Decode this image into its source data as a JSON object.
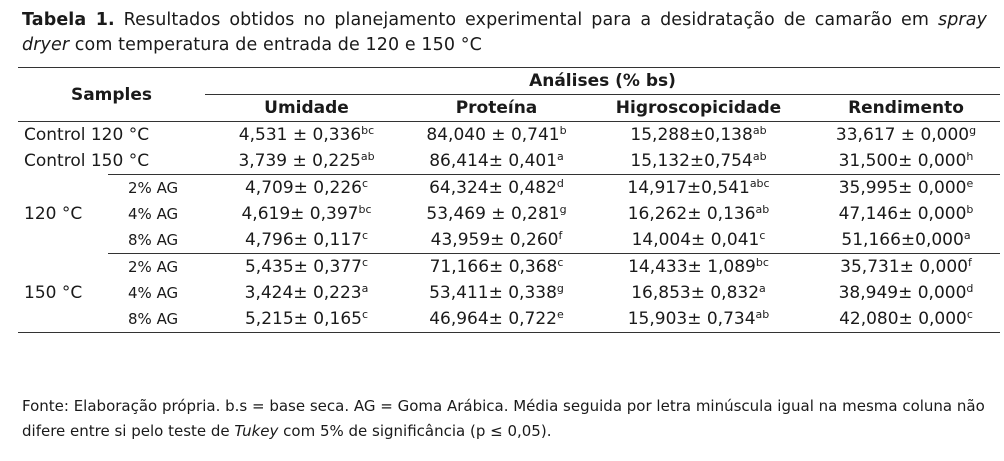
{
  "caption": {
    "label": "Tabela 1.",
    "text_before_italic": " Resultados obtidos no planejamento experimental para a desidratação de camarão em ",
    "italic": "spray dryer",
    "text_after_italic": " com temperatura de entrada de 120 e 150 °C"
  },
  "header": {
    "samples": "Samples",
    "group": "Análises (% bs)",
    "columns": [
      "Umidade",
      "Proteína",
      "Higroscopicidade",
      "Rendimento"
    ]
  },
  "rows": [
    {
      "group": "Control 120 °C",
      "sub": "",
      "cells": [
        [
          "4,531 ± 0,336",
          "bc"
        ],
        [
          "84,040 ± 0,741",
          "b"
        ],
        [
          "15,288±0,138",
          "ab"
        ],
        [
          "33,617 ± 0,000",
          "g"
        ]
      ]
    },
    {
      "group": "Control 150 °C",
      "sub": "",
      "cells": [
        [
          "3,739 ± 0,225",
          "ab"
        ],
        [
          "86,414± 0,401",
          "a"
        ],
        [
          "15,132±0,754",
          "ab"
        ],
        [
          "31,500± 0,000",
          "h"
        ]
      ]
    },
    {
      "group": "120 °C",
      "sub": "2% AG",
      "cells": [
        [
          "4,709± 0,226",
          "c"
        ],
        [
          "64,324± 0,482",
          "d"
        ],
        [
          "14,917±0,541",
          "abc"
        ],
        [
          "35,995± 0,000",
          "e"
        ]
      ]
    },
    {
      "group": "",
      "sub": "4% AG",
      "cells": [
        [
          "4,619± 0,397",
          "bc"
        ],
        [
          "53,469 ± 0,281",
          "g"
        ],
        [
          "16,262± 0,136",
          "ab"
        ],
        [
          "47,146± 0,000",
          "b"
        ]
      ]
    },
    {
      "group": "",
      "sub": "8% AG",
      "cells": [
        [
          "4,796± 0,117",
          "c"
        ],
        [
          "43,959± 0,260",
          "f"
        ],
        [
          "14,004± 0,041",
          "c"
        ],
        [
          "51,166±0,000",
          "a"
        ]
      ]
    },
    {
      "group": "150 °C",
      "sub": "2% AG",
      "cells": [
        [
          "5,435± 0,377",
          "c"
        ],
        [
          "71,166± 0,368",
          "c"
        ],
        [
          "14,433± 1,089",
          "bc"
        ],
        [
          "35,731± 0,000",
          "f"
        ]
      ]
    },
    {
      "group": "",
      "sub": "4% AG",
      "cells": [
        [
          "3,424± 0,223",
          "a"
        ],
        [
          "53,411± 0,338",
          "g"
        ],
        [
          "16,853± 0,832",
          "a"
        ],
        [
          "38,949± 0,000",
          "d"
        ]
      ]
    },
    {
      "group": "",
      "sub": "8% AG",
      "cells": [
        [
          "5,215± 0,165",
          "c"
        ],
        [
          "46,964± 0,722",
          "e"
        ],
        [
          "15,903± 0,734",
          "ab"
        ],
        [
          "42,080± 0,000",
          "c"
        ]
      ]
    }
  ],
  "footnote": {
    "before_italic": "Fonte: Elaboração própria. b.s = base seca. AG = Goma Arábica. Média seguida por letra minúscula igual na mesma coluna não difere entre si pelo teste de ",
    "italic": "Tukey",
    "after_italic": " com 5% de significância (p ≤ 0,05)."
  }
}
